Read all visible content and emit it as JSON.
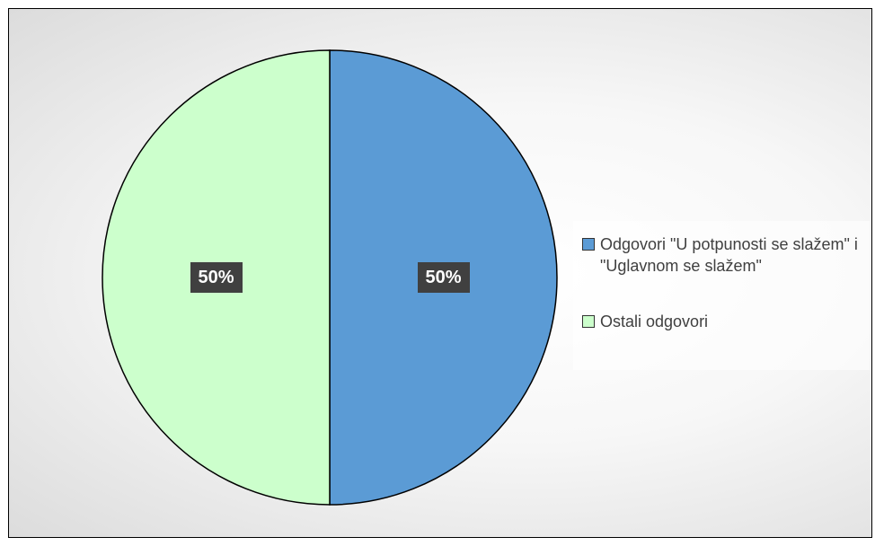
{
  "chart_data": {
    "type": "pie",
    "series": [
      {
        "values": [
          50,
          50
        ],
        "labels": [
          "Odgovori \"U potpunosti se slažem\" i \"Uglavnom se slažem\"",
          "Ostali odgovori"
        ],
        "data_labels": [
          "50%",
          "50%"
        ],
        "colors": [
          "#5b9bd5",
          "#ccffcc"
        ]
      }
    ],
    "legend": {
      "position": "right",
      "entries": [
        "Odgovori \"U potpunosti se slažem\" i \"Uglavnom se slažem\"",
        "Ostali odgovori"
      ]
    },
    "start_angle_deg": 0,
    "direction": "clockwise"
  }
}
